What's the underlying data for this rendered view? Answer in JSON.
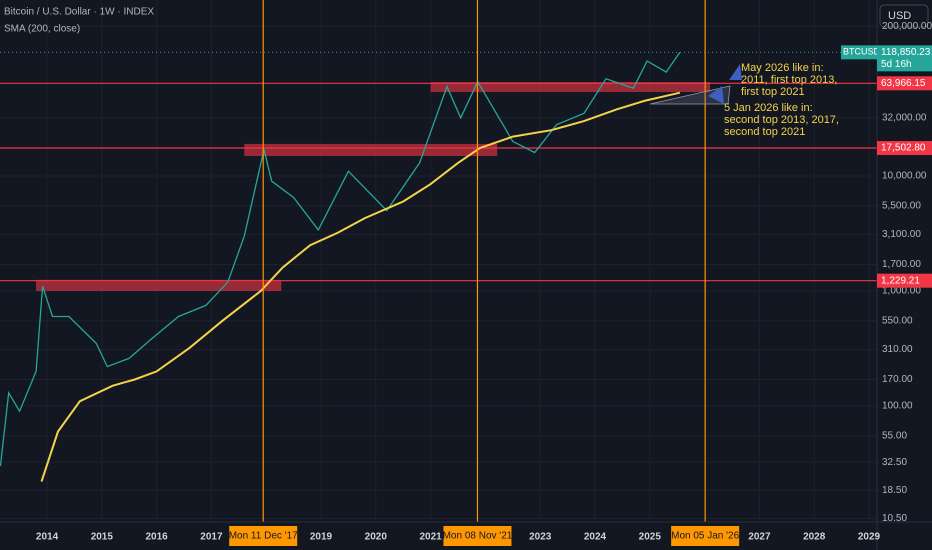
{
  "chart_data": {
    "type": "line",
    "title": "Bitcoin / U.S. Dollar · 1W · INDEX",
    "currency": "USD",
    "log_scale": true,
    "grid": true,
    "xlim": [
      2013.142,
      2029.146
    ],
    "ylim": [
      9.8,
      339000
    ],
    "xticks": [
      2014,
      2015,
      2016,
      2017,
      2019,
      2020,
      2021,
      2023,
      2024,
      2025,
      2027,
      2028,
      2029
    ],
    "yticks": [
      {
        "value": 200000,
        "label": "200,000.00"
      },
      {
        "value": 32000,
        "label": "32,000.00"
      },
      {
        "value": 10000,
        "label": "10,000.00"
      },
      {
        "value": 5500,
        "label": "5,500.00"
      },
      {
        "value": 3100,
        "label": "3,100.00"
      },
      {
        "value": 1700,
        "label": "1,700.00"
      },
      {
        "value": 1000,
        "label": "1,000.00"
      },
      {
        "value": 550,
        "label": "550.00"
      },
      {
        "value": 310,
        "label": "310.00"
      },
      {
        "value": 170,
        "label": "170.00"
      },
      {
        "value": 100,
        "label": "100.00"
      },
      {
        "value": 55,
        "label": "55.00"
      },
      {
        "value": 32.5,
        "label": "32.50"
      },
      {
        "value": 18.5,
        "label": "18.50"
      },
      {
        "value": 10.5,
        "label": "10.50"
      }
    ],
    "series": [
      {
        "name": "BTCUSD",
        "color": "#26a69a",
        "x": [
          2013.15,
          2013.3,
          2013.5,
          2013.8,
          2013.92,
          2014.1,
          2014.4,
          2014.9,
          2015.1,
          2015.5,
          2015.9,
          2016.4,
          2016.9,
          2017.3,
          2017.6,
          2017.96,
          2018.1,
          2018.5,
          2018.95,
          2019.5,
          2020.2,
          2020.8,
          2021.3,
          2021.55,
          2021.86,
          2022.5,
          2022.9,
          2023.3,
          2023.8,
          2024.2,
          2024.7,
          2024.95,
          2025.3,
          2025.55
        ],
        "values": [
          30,
          130,
          90,
          200,
          1100,
          600,
          600,
          350,
          220,
          260,
          380,
          600,
          750,
          1200,
          3000,
          17000,
          9000,
          6500,
          3400,
          11000,
          5000,
          13000,
          60000,
          32000,
          66000,
          20000,
          16000,
          28000,
          35000,
          70000,
          58000,
          100000,
          80000,
          118850.23
        ]
      },
      {
        "name": "SMA (200, close)",
        "color": "#f5d349",
        "x": [
          2013.9,
          2014.2,
          2014.6,
          2015.2,
          2015.6,
          2016.0,
          2016.6,
          2017.2,
          2017.9,
          2018.3,
          2018.8,
          2019.3,
          2019.8,
          2020.5,
          2021.0,
          2021.5,
          2021.9,
          2022.5,
          2023.2,
          2023.8,
          2024.4,
          2024.9,
          2025.55
        ],
        "values": [
          22,
          60,
          110,
          150,
          170,
          200,
          320,
          550,
          1000,
          1600,
          2500,
          3200,
          4300,
          6000,
          8500,
          13000,
          17500,
          22000,
          25000,
          30000,
          38000,
          45000,
          53000
        ]
      }
    ],
    "last_price": {
      "value": 118850.23,
      "label": "118,850.23"
    },
    "countdown": "5d 16h",
    "levels": [
      {
        "value": 63966.15,
        "label": "63,966.15"
      },
      {
        "value": 17502.8,
        "label": "17,502.80"
      },
      {
        "value": 1229.21,
        "label": "1,229.21"
      }
    ],
    "zones": [
      {
        "x0": 2013.8,
        "x1": 2018.275,
        "low": 1000,
        "high": 1250
      },
      {
        "x0": 2017.6,
        "x1": 2022.215,
        "low": 14900,
        "high": 19000
      },
      {
        "x0": 2021.0,
        "x1": 2026.1,
        "low": 53700,
        "high": 65600
      }
    ],
    "markers": [
      {
        "x": 2017.945,
        "label": "Mon 11 Dec '17"
      },
      {
        "x": 2021.855,
        "label": "Mon 08 Nov '21"
      },
      {
        "x": 2026.01,
        "label": "Mon 05 Jan '26"
      }
    ],
    "annotations": [
      [
        "May 2026 like in:",
        "2011, first top 2013,",
        "first top 2021"
      ],
      [
        "5 Jan 2026 like in:",
        "second top 2013, 2017,",
        "second top 2021"
      ]
    ]
  }
}
